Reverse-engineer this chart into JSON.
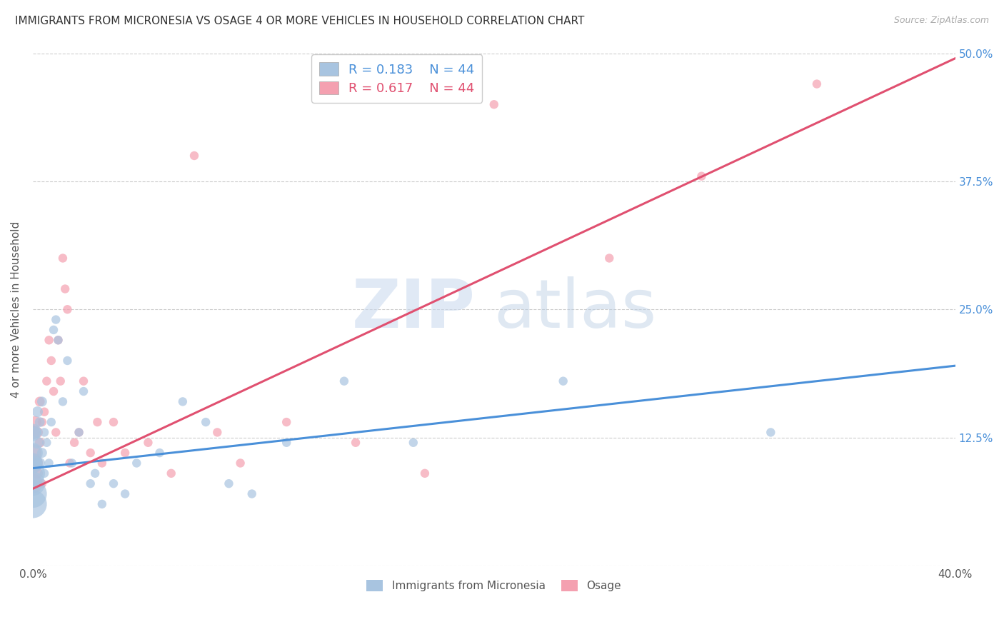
{
  "title": "IMMIGRANTS FROM MICRONESIA VS OSAGE 4 OR MORE VEHICLES IN HOUSEHOLD CORRELATION CHART",
  "source": "Source: ZipAtlas.com",
  "ylabel": "4 or more Vehicles in Household",
  "xlim": [
    0.0,
    0.4
  ],
  "ylim": [
    0.0,
    0.5
  ],
  "xticks": [
    0.0,
    0.1,
    0.2,
    0.3,
    0.4
  ],
  "xticklabels": [
    "0.0%",
    "",
    "",
    "",
    "40.0%"
  ],
  "yticks": [
    0.0,
    0.125,
    0.25,
    0.375,
    0.5
  ],
  "yticklabels": [
    "",
    "12.5%",
    "25.0%",
    "37.5%",
    "50.0%"
  ],
  "R_blue": 0.183,
  "N_blue": 44,
  "R_pink": 0.617,
  "N_pink": 44,
  "blue_color": "#a8c4e0",
  "pink_color": "#f4a0b0",
  "blue_line_color": "#4a90d9",
  "pink_line_color": "#e05070",
  "legend_label_blue": "Immigrants from Micronesia",
  "legend_label_pink": "Osage",
  "watermark_zip": "ZIP",
  "watermark_atlas": "atlas",
  "blue_line_x0": 0.0,
  "blue_line_y0": 0.095,
  "blue_line_x1": 0.4,
  "blue_line_y1": 0.195,
  "pink_line_x0": 0.0,
  "pink_line_y0": 0.075,
  "pink_line_x1": 0.4,
  "pink_line_y1": 0.495,
  "blue_scatter_x": [
    0.0,
    0.0,
    0.0,
    0.0,
    0.0,
    0.0,
    0.0,
    0.001,
    0.001,
    0.002,
    0.002,
    0.003,
    0.003,
    0.004,
    0.004,
    0.005,
    0.005,
    0.006,
    0.007,
    0.008,
    0.009,
    0.01,
    0.011,
    0.013,
    0.015,
    0.017,
    0.02,
    0.022,
    0.025,
    0.027,
    0.03,
    0.035,
    0.04,
    0.045,
    0.055,
    0.065,
    0.075,
    0.085,
    0.095,
    0.11,
    0.135,
    0.165,
    0.23,
    0.32
  ],
  "blue_scatter_y": [
    0.06,
    0.07,
    0.08,
    0.09,
    0.1,
    0.11,
    0.13,
    0.1,
    0.13,
    0.12,
    0.15,
    0.1,
    0.14,
    0.11,
    0.16,
    0.09,
    0.13,
    0.12,
    0.1,
    0.14,
    0.23,
    0.24,
    0.22,
    0.16,
    0.2,
    0.1,
    0.13,
    0.17,
    0.08,
    0.09,
    0.06,
    0.08,
    0.07,
    0.1,
    0.11,
    0.16,
    0.14,
    0.08,
    0.07,
    0.12,
    0.18,
    0.12,
    0.18,
    0.13
  ],
  "blue_scatter_s": [
    800,
    800,
    600,
    600,
    400,
    400,
    300,
    200,
    150,
    150,
    120,
    120,
    100,
    100,
    100,
    80,
    80,
    80,
    80,
    80,
    80,
    80,
    80,
    80,
    80,
    80,
    80,
    80,
    80,
    80,
    80,
    80,
    80,
    80,
    80,
    80,
    80,
    80,
    80,
    80,
    80,
    80,
    80,
    80
  ],
  "pink_scatter_x": [
    0.0,
    0.0,
    0.0,
    0.0,
    0.001,
    0.001,
    0.002,
    0.002,
    0.003,
    0.003,
    0.004,
    0.004,
    0.005,
    0.006,
    0.007,
    0.008,
    0.009,
    0.01,
    0.011,
    0.012,
    0.013,
    0.014,
    0.015,
    0.016,
    0.018,
    0.02,
    0.022,
    0.025,
    0.028,
    0.03,
    0.035,
    0.04,
    0.05,
    0.06,
    0.07,
    0.08,
    0.09,
    0.11,
    0.14,
    0.17,
    0.2,
    0.25,
    0.29,
    0.34
  ],
  "pink_scatter_y": [
    0.08,
    0.1,
    0.11,
    0.13,
    0.1,
    0.14,
    0.09,
    0.13,
    0.12,
    0.16,
    0.08,
    0.14,
    0.15,
    0.18,
    0.22,
    0.2,
    0.17,
    0.13,
    0.22,
    0.18,
    0.3,
    0.27,
    0.25,
    0.1,
    0.12,
    0.13,
    0.18,
    0.11,
    0.14,
    0.1,
    0.14,
    0.11,
    0.12,
    0.09,
    0.4,
    0.13,
    0.1,
    0.14,
    0.12,
    0.09,
    0.45,
    0.3,
    0.38,
    0.47
  ],
  "pink_scatter_s": [
    400,
    400,
    300,
    200,
    150,
    150,
    120,
    120,
    100,
    100,
    80,
    80,
    80,
    80,
    80,
    80,
    80,
    80,
    80,
    80,
    80,
    80,
    80,
    80,
    80,
    80,
    80,
    80,
    80,
    80,
    80,
    80,
    80,
    80,
    80,
    80,
    80,
    80,
    80,
    80,
    80,
    80,
    80,
    80
  ]
}
